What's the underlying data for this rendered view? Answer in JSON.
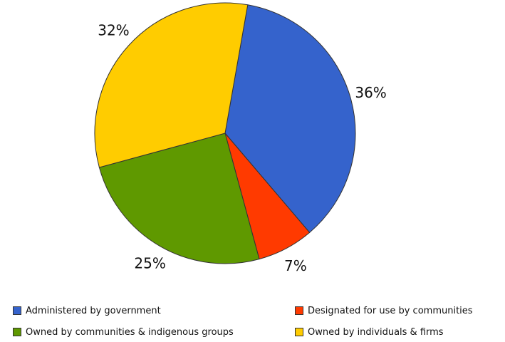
{
  "chart_data": {
    "type": "pie",
    "slices": [
      {
        "label": "Administered by government",
        "value": 36,
        "value_label": "36%",
        "color": "#3563CC"
      },
      {
        "label": "Designated for use by communities",
        "value": 7,
        "value_label": "7%",
        "color": "#FF3A00"
      },
      {
        "label": "Owned by communities & indigenous groups",
        "value": 25,
        "value_label": "25%",
        "color": "#5F9900"
      },
      {
        "label": "Owned by individuals & firms",
        "value": 32,
        "value_label": "32%",
        "color": "#FFCC00"
      }
    ],
    "title": "",
    "legend_position": "bottom",
    "start_angle_deg": 10,
    "direction": "clockwise"
  }
}
